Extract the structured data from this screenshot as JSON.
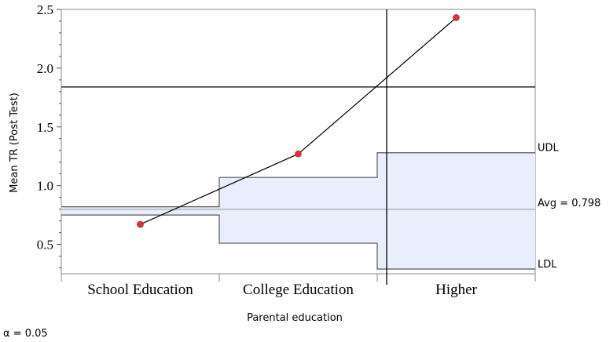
{
  "chart_data": {
    "type": "line",
    "xlabel": "Parental education",
    "ylabel": "Mean TR (Post Test)",
    "ylim": [
      0.25,
      2.5
    ],
    "yticks": [
      "0.5",
      "1.0",
      "1.5",
      "2.0",
      "2.5"
    ],
    "categories": [
      "School Education",
      "College Education",
      "Higher"
    ],
    "series": [
      {
        "values": [
          0.67,
          1.27,
          2.43
        ]
      }
    ],
    "average": 0.798,
    "average_label": "Avg = 0.798",
    "decision_limits": {
      "udl": [
        0.82,
        1.07,
        1.28
      ],
      "ldl": [
        0.75,
        0.51,
        0.29
      ],
      "udl_label": "UDL",
      "ldl_label": "LDL"
    },
    "crosshair": {
      "y": 1.84
    },
    "alpha_label": "α = 0.05",
    "colors": {
      "point": "#e0303a",
      "line": "#000000",
      "band_fill": "#e8eefb",
      "band_stroke": "#555555",
      "average_line": "#999999",
      "frame": "#888888"
    }
  }
}
